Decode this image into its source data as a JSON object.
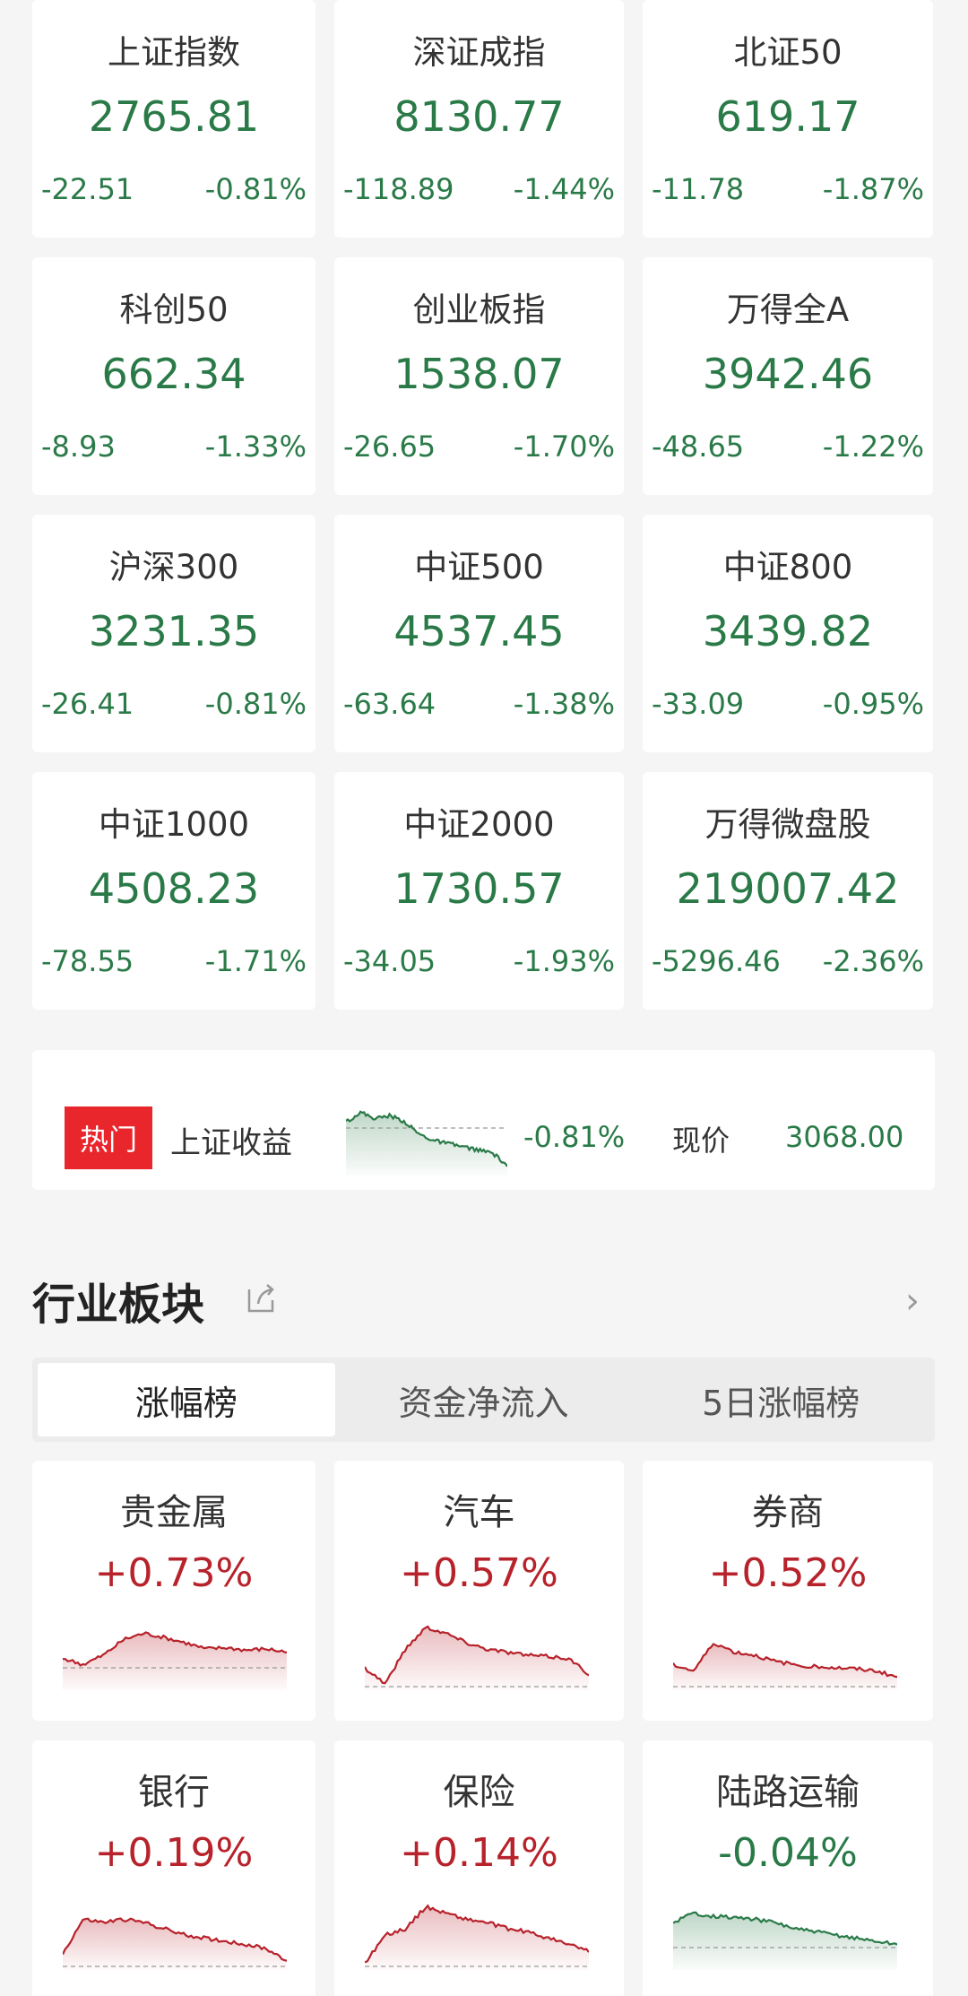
{
  "colors": {
    "up": "#b7222b",
    "down": "#2a7a48",
    "hot_tag": "#e8262c"
  },
  "indices": [
    {
      "name": "上证指数",
      "value": "2765.81",
      "change": "-22.51",
      "pct": "-0.81%"
    },
    {
      "name": "深证成指",
      "value": "8130.77",
      "change": "-118.89",
      "pct": "-1.44%"
    },
    {
      "name": "北证50",
      "value": "619.17",
      "change": "-11.78",
      "pct": "-1.87%"
    },
    {
      "name": "科创50",
      "value": "662.34",
      "change": "-8.93",
      "pct": "-1.33%"
    },
    {
      "name": "创业板指",
      "value": "1538.07",
      "change": "-26.65",
      "pct": "-1.70%"
    },
    {
      "name": "万得全A",
      "value": "3942.46",
      "change": "-48.65",
      "pct": "-1.22%"
    },
    {
      "name": "沪深300",
      "value": "3231.35",
      "change": "-26.41",
      "pct": "-0.81%"
    },
    {
      "name": "中证500",
      "value": "4537.45",
      "change": "-63.64",
      "pct": "-1.38%"
    },
    {
      "name": "中证800",
      "value": "3439.82",
      "change": "-33.09",
      "pct": "-0.95%"
    },
    {
      "name": "中证1000",
      "value": "4508.23",
      "change": "-78.55",
      "pct": "-1.71%"
    },
    {
      "name": "中证2000",
      "value": "1730.57",
      "change": "-34.05",
      "pct": "-1.93%"
    },
    {
      "name": "万得微盘股",
      "value": "219007.42",
      "change": "-5296.46",
      "pct": "-2.36%"
    }
  ],
  "hot": {
    "tag": "热门",
    "name": "上证收益",
    "pct": "-0.81%",
    "price_label": "现价",
    "price": "3068.00",
    "trend": "down",
    "spark": [
      0.8,
      0.95,
      0.85,
      0.9,
      0.8,
      0.6,
      0.5,
      0.45,
      0.4,
      0.35,
      0.3,
      0.1
    ]
  },
  "section": {
    "title": "行业板块",
    "share_icon": "share-icon",
    "more_icon": "chevron-right-icon"
  },
  "tabs": [
    {
      "label": "涨幅榜",
      "active": true
    },
    {
      "label": "资金净流入",
      "active": false
    },
    {
      "label": "5日涨幅榜",
      "active": false
    }
  ],
  "sectors": [
    {
      "name": "贵金属",
      "pct": "+0.73%",
      "trend": "up",
      "spark": [
        0.45,
        0.35,
        0.5,
        0.75,
        0.85,
        0.78,
        0.7,
        0.6,
        0.62,
        0.58,
        0.6,
        0.55
      ]
    },
    {
      "name": "汽车",
      "pct": "+0.57%",
      "trend": "up",
      "spark": [
        0.3,
        0.05,
        0.6,
        0.95,
        0.85,
        0.7,
        0.6,
        0.55,
        0.5,
        0.48,
        0.45,
        0.2
      ]
    },
    {
      "name": "券商",
      "pct": "+0.52%",
      "trend": "up",
      "spark": [
        0.35,
        0.25,
        0.7,
        0.55,
        0.5,
        0.4,
        0.35,
        0.32,
        0.3,
        0.28,
        0.25,
        0.15
      ]
    },
    {
      "name": "银行",
      "pct": "+0.19%",
      "trend": "up",
      "spark": [
        0.2,
        0.75,
        0.7,
        0.75,
        0.7,
        0.6,
        0.5,
        0.45,
        0.4,
        0.35,
        0.28,
        0.1
      ]
    },
    {
      "name": "保险",
      "pct": "+0.14%",
      "trend": "up",
      "spark": [
        0.05,
        0.5,
        0.6,
        0.95,
        0.85,
        0.75,
        0.7,
        0.6,
        0.55,
        0.45,
        0.35,
        0.25
      ]
    },
    {
      "name": "陆路运输",
      "pct": "-0.04%",
      "trend": "down",
      "spark": [
        0.7,
        0.85,
        0.8,
        0.78,
        0.75,
        0.7,
        0.6,
        0.55,
        0.5,
        0.45,
        0.4,
        0.35
      ]
    }
  ]
}
